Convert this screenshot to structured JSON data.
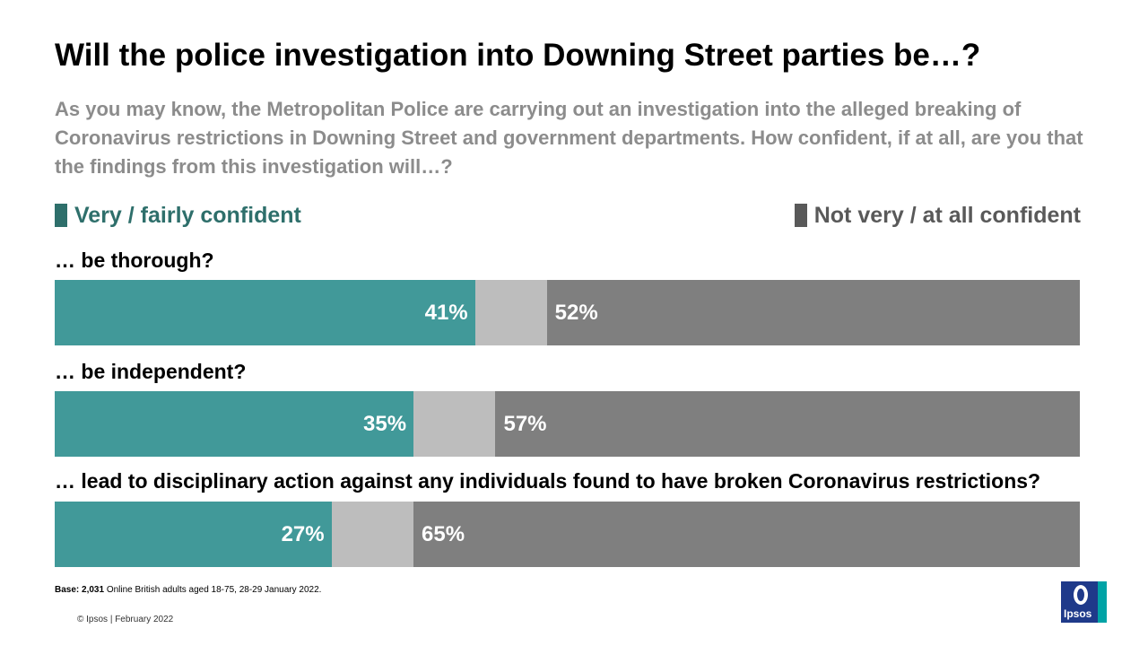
{
  "title": "Will the police investigation into Downing Street parties be…?",
  "subtitle": "As you may know, the Metropolitan Police are carrying out an investigation into the alleged breaking of Coronavirus restrictions in Downing Street and government departments. How confident, if at all, are you that the findings from this investigation will…?",
  "legend": {
    "positive": "Very / fairly confident",
    "negative": "Not very / at all confident"
  },
  "colors": {
    "positive": "#419999",
    "middle": "#bdbdbd",
    "negative": "#7f7f7f",
    "legend_positive": "#2e6f6b",
    "legend_negative": "#595959"
  },
  "chart_data": {
    "type": "bar",
    "orientation": "horizontal-stacked",
    "categories": [
      "… be thorough?",
      "… be independent?",
      "… lead to disciplinary action against any individuals found to have broken Coronavirus restrictions?"
    ],
    "series": [
      {
        "name": "Very / fairly confident",
        "values": [
          41,
          35,
          27
        ],
        "labels": [
          "41%",
          "35%",
          "27%"
        ]
      },
      {
        "values": [
          7,
          8,
          8
        ]
      },
      {
        "name": "Not very / at all confident",
        "values": [
          52,
          57,
          65
        ],
        "labels": [
          "52%",
          "57%",
          "65%"
        ]
      }
    ],
    "xlim": [
      0,
      100
    ],
    "grid": false,
    "legend_placement": "top"
  },
  "base_note": {
    "label": "Base: 2,031",
    "text": " Online British adults aged 18-75, 28-29 January 2022."
  },
  "footer": "© Ipsos | February 2022",
  "logo_text": "Ipsos"
}
